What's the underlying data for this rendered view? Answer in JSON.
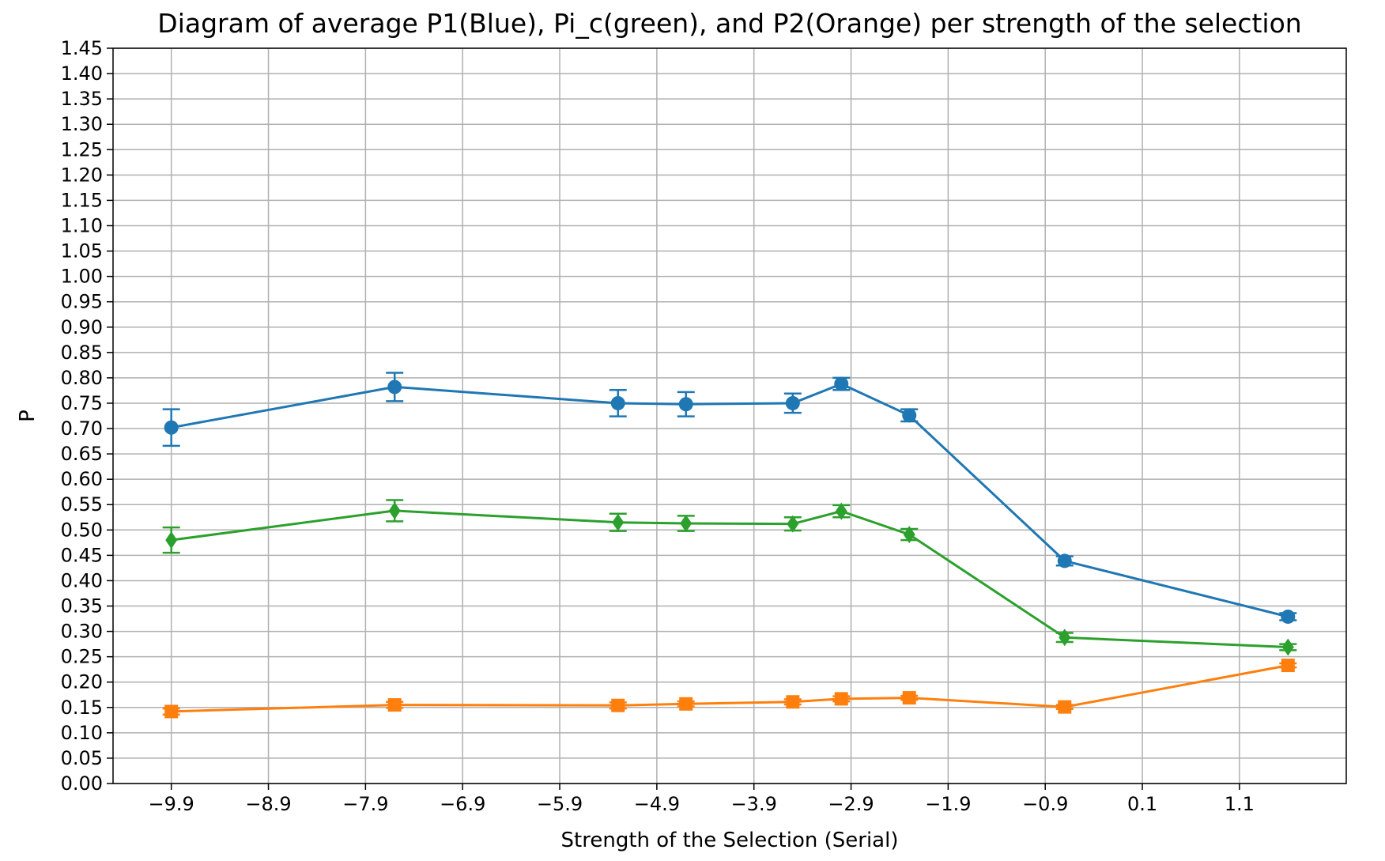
{
  "chart_data": {
    "type": "line",
    "title": "Diagram of average P1(Blue), Pi_c(green), and P2(Orange) per strength of the selection",
    "xlabel": "Strength of the Selection (Serial)",
    "ylabel": "P",
    "xlim": [
      -10.5,
      2.2
    ],
    "ylim": [
      0.0,
      1.45
    ],
    "grid": true,
    "xticks": [
      -9.9,
      -8.9,
      -7.9,
      -6.9,
      -5.9,
      -4.9,
      -3.9,
      -2.9,
      -1.9,
      -0.9,
      0.1,
      1.1
    ],
    "xtick_labels": [
      "−9.9",
      "−8.9",
      "−7.9",
      "−6.9",
      "−5.9",
      "−4.9",
      "−3.9",
      "−2.9",
      "−1.9",
      "−0.9",
      "0.1",
      "1.1"
    ],
    "yticks": [
      0.0,
      0.05,
      0.1,
      0.15,
      0.2,
      0.25,
      0.3,
      0.35,
      0.4,
      0.45,
      0.5,
      0.55,
      0.6,
      0.65,
      0.7,
      0.75,
      0.8,
      0.85,
      0.9,
      0.95,
      1.0,
      1.05,
      1.1,
      1.15,
      1.2,
      1.25,
      1.3,
      1.35,
      1.4,
      1.45
    ],
    "ytick_labels": [
      "0.00",
      "0.05",
      "0.10",
      "0.15",
      "0.20",
      "0.25",
      "0.30",
      "0.35",
      "0.40",
      "0.45",
      "0.50",
      "0.55",
      "0.60",
      "0.65",
      "0.70",
      "0.75",
      "0.80",
      "0.85",
      "0.90",
      "0.95",
      "1.00",
      "1.05",
      "1.10",
      "1.15",
      "1.20",
      "1.25",
      "1.30",
      "1.35",
      "1.40",
      "1.45"
    ],
    "x": [
      -9.9,
      -7.6,
      -5.3,
      -4.6,
      -3.5,
      -3.0,
      -2.3,
      -0.7,
      1.6
    ],
    "series": [
      {
        "key": "p1",
        "color": "#1f77b4",
        "marker": "circle",
        "values": [
          0.702,
          0.782,
          0.75,
          0.748,
          0.75,
          0.788,
          0.726,
          0.439,
          0.329
        ],
        "errors": [
          0.036,
          0.028,
          0.026,
          0.024,
          0.019,
          0.012,
          0.012,
          0.009,
          0.007
        ]
      },
      {
        "key": "pi_c",
        "color": "#2ca02c",
        "marker": "diamond",
        "values": [
          0.48,
          0.538,
          0.515,
          0.513,
          0.512,
          0.537,
          0.491,
          0.288,
          0.269
        ],
        "errors": [
          0.025,
          0.021,
          0.017,
          0.015,
          0.013,
          0.012,
          0.011,
          0.009,
          0.006
        ]
      },
      {
        "key": "p2",
        "color": "#ff7f0e",
        "marker": "square",
        "values": [
          0.142,
          0.155,
          0.154,
          0.157,
          0.161,
          0.167,
          0.169,
          0.151,
          0.233
        ],
        "errors": [
          0.006,
          0.006,
          0.006,
          0.005,
          0.005,
          0.005,
          0.004,
          0.004,
          0.004
        ]
      }
    ],
    "colors": {
      "grid": "#b0b0b0",
      "axes": "#000000",
      "background": "#ffffff"
    }
  }
}
